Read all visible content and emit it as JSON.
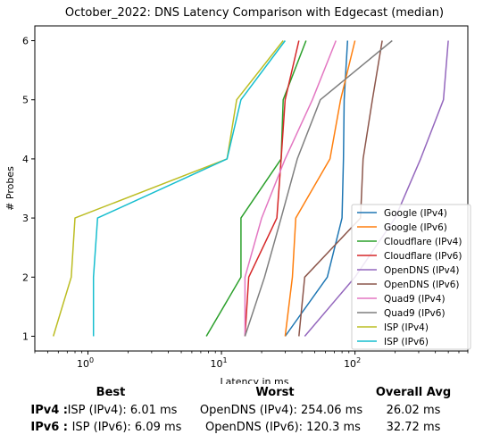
{
  "chart_data": {
    "type": "line",
    "title": "October_2022: DNS Latency Comparison with Edgecast (median)",
    "xlabel": "Latency in ms",
    "ylabel": "# Probes",
    "xscale": "log",
    "xlim": [
      0.4,
      700
    ],
    "ylim": [
      0.75,
      6.25
    ],
    "xticks": [
      {
        "value": 1,
        "label": "10^0"
      },
      {
        "value": 10,
        "label": "10^1"
      },
      {
        "value": 100,
        "label": "10^2"
      }
    ],
    "yticks": [
      1,
      2,
      3,
      4,
      5,
      6
    ],
    "legend_position": "lower right",
    "grid": false,
    "series": [
      {
        "name": "Google (IPv4)",
        "color": "#1f77b4",
        "points": [
          [
            30,
            1
          ],
          [
            62,
            2
          ],
          [
            80,
            3
          ],
          [
            82,
            4
          ],
          [
            83,
            5
          ],
          [
            88,
            6
          ]
        ]
      },
      {
        "name": "Google (IPv6)",
        "color": "#ff7f0e",
        "points": [
          [
            30,
            1
          ],
          [
            34,
            2
          ],
          [
            36,
            3
          ],
          [
            65,
            4
          ],
          [
            78,
            5
          ],
          [
            100,
            6
          ]
        ]
      },
      {
        "name": "Cloudflare (IPv4)",
        "color": "#2ca02c",
        "points": [
          [
            7.7,
            1
          ],
          [
            14,
            2
          ],
          [
            14,
            3
          ],
          [
            28,
            4
          ],
          [
            29,
            5
          ],
          [
            43,
            6
          ]
        ]
      },
      {
        "name": "Cloudflare (IPv6)",
        "color": "#d62728",
        "points": [
          [
            15,
            1
          ],
          [
            16,
            2
          ],
          [
            26,
            3
          ],
          [
            28,
            4
          ],
          [
            30,
            5
          ],
          [
            38,
            6
          ]
        ]
      },
      {
        "name": "OpenDNS (IPv4)",
        "color": "#9467bd",
        "points": [
          [
            42,
            1
          ],
          [
            100,
            2
          ],
          [
            200,
            3
          ],
          [
            310,
            4
          ],
          [
            460,
            5
          ],
          [
            500,
            6
          ]
        ]
      },
      {
        "name": "OpenDNS (IPv6)",
        "color": "#8c564b",
        "points": [
          [
            38,
            1
          ],
          [
            42,
            2
          ],
          [
            110,
            3
          ],
          [
            115,
            4
          ],
          [
            135,
            5
          ],
          [
            160,
            6
          ]
        ]
      },
      {
        "name": "Quad9 (IPv4)",
        "color": "#e377c2",
        "points": [
          [
            15,
            1
          ],
          [
            15,
            2
          ],
          [
            20,
            3
          ],
          [
            30,
            4
          ],
          [
            48,
            5
          ],
          [
            72,
            6
          ]
        ]
      },
      {
        "name": "Quad9 (IPv6)",
        "color": "#7f7f7f",
        "points": [
          [
            15,
            1
          ],
          [
            21,
            2
          ],
          [
            28,
            3
          ],
          [
            37,
            4
          ],
          [
            55,
            5
          ],
          [
            190,
            6
          ]
        ]
      },
      {
        "name": "ISP (IPv4)",
        "color": "#bcbd22",
        "points": [
          [
            0.55,
            1
          ],
          [
            0.75,
            2
          ],
          [
            0.8,
            3
          ],
          [
            11,
            4
          ],
          [
            13,
            5
          ],
          [
            29,
            6
          ]
        ]
      },
      {
        "name": "ISP (IPv6)",
        "color": "#17becf",
        "points": [
          [
            1.1,
            1
          ],
          [
            1.1,
            2
          ],
          [
            1.18,
            3
          ],
          [
            11,
            4
          ],
          [
            14,
            5
          ],
          [
            30,
            6
          ]
        ]
      }
    ]
  },
  "summary": {
    "headers": {
      "best": "Best",
      "worst": "Worst",
      "avg": "Overall Avg"
    },
    "rows": [
      {
        "label": "IPv4 :",
        "best": "ISP (IPv4): 6.01 ms",
        "worst": "OpenDNS (IPv4): 254.06 ms",
        "avg": "26.02 ms"
      },
      {
        "label": "IPv6 :",
        "best": "ISP (IPv6): 6.09 ms",
        "worst": "OpenDNS (IPv6): 120.3 ms",
        "avg": "32.72 ms"
      }
    ]
  }
}
